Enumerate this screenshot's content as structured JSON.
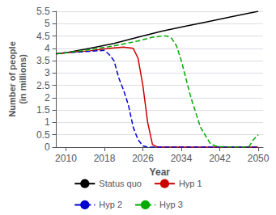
{
  "chart_data": {
    "type": "line",
    "xlabel": "Year",
    "ylabel": "Number of people\n(in millions)",
    "xlim": [
      2008,
      2051
    ],
    "ylim": [
      0,
      5.5
    ],
    "xticks": [
      2010,
      2018,
      2026,
      2034,
      2042,
      2050
    ],
    "yticks": [
      0,
      0.5,
      1,
      1.5,
      2,
      2.5,
      3,
      3.5,
      4,
      4.5,
      5,
      5.5
    ],
    "grid": true,
    "legend": "bottom",
    "series": [
      {
        "name": "Status quo",
        "color": "#000000",
        "line_style": "solid",
        "x": [
          2008,
          2010,
          2015,
          2020,
          2025,
          2030,
          2035,
          2040,
          2045,
          2050
        ],
        "values": [
          3.78,
          3.82,
          4.0,
          4.2,
          4.45,
          4.7,
          4.9,
          5.1,
          5.3,
          5.5
        ]
      },
      {
        "name": "Hyp 1",
        "color": "#cc0000",
        "line_style": "solid",
        "x": [
          2008,
          2010,
          2015,
          2018,
          2020,
          2022,
          2024,
          2025,
          2026,
          2027,
          2028,
          2029,
          2050
        ],
        "values": [
          3.78,
          3.82,
          3.9,
          3.98,
          4.02,
          4.05,
          4.0,
          3.6,
          2.5,
          1.0,
          0.1,
          0.0,
          0.0
        ]
      },
      {
        "name": "Hyp 2",
        "color": "#0000cc",
        "line_style": "dashed",
        "x": [
          2008,
          2010,
          2015,
          2018,
          2019,
          2020,
          2021,
          2022,
          2023,
          2024,
          2025,
          2026,
          2027,
          2050
        ],
        "values": [
          3.78,
          3.82,
          3.88,
          3.92,
          3.75,
          3.5,
          2.8,
          2.3,
          1.7,
          0.8,
          0.3,
          0.05,
          0.0,
          0.0
        ]
      },
      {
        "name": "Hyp 3",
        "color": "#00aa00",
        "line_style": "dashed",
        "x": [
          2008,
          2010,
          2015,
          2020,
          2025,
          2028,
          2030,
          2031,
          2032,
          2033,
          2034,
          2036,
          2038,
          2040,
          2041,
          2042,
          2045,
          2048,
          2049,
          2050
        ],
        "values": [
          3.78,
          3.82,
          3.95,
          4.1,
          4.3,
          4.45,
          4.5,
          4.5,
          4.4,
          4.1,
          3.5,
          2.0,
          0.8,
          0.15,
          0.05,
          0.02,
          0.0,
          0.0,
          0.3,
          0.5
        ]
      }
    ]
  }
}
